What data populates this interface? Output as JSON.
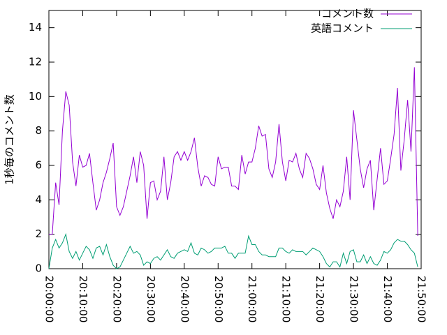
{
  "chart_data": {
    "type": "line",
    "ylabel": "1秒毎のコメント数",
    "legend": "top-right",
    "x": [
      "20:00:00",
      "20:01:00",
      "20:02:00",
      "20:03:00",
      "20:04:00",
      "20:05:00",
      "20:06:00",
      "20:07:00",
      "20:08:00",
      "20:09:00",
      "20:10:00",
      "20:11:00",
      "20:12:00",
      "20:13:00",
      "20:14:00",
      "20:15:00",
      "20:16:00",
      "20:17:00",
      "20:18:00",
      "20:19:00",
      "20:20:00",
      "20:21:00",
      "20:22:00",
      "20:23:00",
      "20:24:00",
      "20:25:00",
      "20:26:00",
      "20:27:00",
      "20:28:00",
      "20:29:00",
      "20:30:00",
      "20:31:00",
      "20:32:00",
      "20:33:00",
      "20:34:00",
      "20:35:00",
      "20:36:00",
      "20:37:00",
      "20:38:00",
      "20:39:00",
      "20:40:00",
      "20:41:00",
      "20:42:00",
      "20:43:00",
      "20:44:00",
      "20:45:00",
      "20:46:00",
      "20:47:00",
      "20:48:00",
      "20:49:00",
      "20:50:00",
      "20:51:00",
      "20:52:00",
      "20:53:00",
      "20:54:00",
      "20:55:00",
      "20:56:00",
      "20:57:00",
      "20:58:00",
      "20:59:00",
      "21:00:00",
      "21:01:00",
      "21:02:00",
      "21:03:00",
      "21:04:00",
      "21:05:00",
      "21:06:00",
      "21:07:00",
      "21:08:00",
      "21:09:00",
      "21:10:00",
      "21:11:00",
      "21:12:00",
      "21:13:00",
      "21:14:00",
      "21:15:00",
      "21:16:00",
      "21:17:00",
      "21:18:00",
      "21:19:00",
      "21:20:00",
      "21:21:00",
      "21:22:00",
      "21:23:00",
      "21:24:00",
      "21:25:00",
      "21:26:00",
      "21:27:00",
      "21:28:00",
      "21:29:00",
      "21:30:00",
      "21:31:00",
      "21:32:00",
      "21:33:00",
      "21:34:00",
      "21:35:00",
      "21:36:00",
      "21:37:00",
      "21:38:00",
      "21:39:00",
      "21:40:00",
      "21:41:00",
      "21:42:00",
      "21:43:00",
      "21:44:00",
      "21:45:00",
      "21:46:00",
      "21:47:00",
      "21:48:00",
      "21:49:00"
    ],
    "series": [
      {
        "name": "コメント数",
        "color": "#9400d3",
        "values": [
          2.0,
          2.0,
          5.0,
          3.7,
          8.0,
          10.3,
          9.5,
          6.2,
          4.8,
          6.6,
          5.9,
          6.0,
          6.7,
          5.0,
          3.4,
          4.0,
          5.0,
          5.6,
          6.4,
          7.3,
          3.6,
          3.1,
          3.6,
          4.5,
          5.4,
          6.5,
          5.0,
          6.8,
          6.0,
          2.9,
          5.0,
          5.1,
          4.0,
          4.5,
          6.5,
          4.0,
          5.0,
          6.5,
          6.8,
          6.3,
          6.8,
          6.3,
          6.8,
          7.6,
          5.9,
          4.8,
          5.4,
          5.3,
          4.9,
          4.8,
          6.5,
          5.8,
          5.9,
          5.9,
          4.8,
          4.8,
          4.6,
          6.6,
          5.5,
          6.2,
          6.2,
          7.0,
          8.3,
          7.7,
          7.8,
          5.8,
          5.3,
          6.2,
          8.4,
          6.2,
          5.1,
          6.3,
          6.2,
          6.7,
          5.8,
          5.3,
          6.7,
          6.4,
          5.8,
          4.9,
          4.6,
          6.0,
          4.4,
          3.5,
          2.9,
          4.0,
          3.6,
          4.5,
          6.5,
          4.0,
          9.2,
          7.5,
          5.8,
          4.7,
          5.8,
          6.3,
          3.4,
          5.2,
          7.0,
          4.9,
          5.1,
          6.4,
          7.8,
          10.5,
          5.7,
          7.5,
          9.8,
          6.8,
          11.7,
          1.9
        ]
      },
      {
        "name": "英語コメント",
        "color": "#009e73",
        "values": [
          0.0,
          1.2,
          1.7,
          1.2,
          1.5,
          2.0,
          1.0,
          0.6,
          1.0,
          0.5,
          0.9,
          1.3,
          1.1,
          0.6,
          1.2,
          1.3,
          0.8,
          1.4,
          0.7,
          0.2,
          0.0,
          0.1,
          0.5,
          0.9,
          1.3,
          0.9,
          1.0,
          0.8,
          0.2,
          0.4,
          0.3,
          0.6,
          0.7,
          0.5,
          0.8,
          1.1,
          0.7,
          0.6,
          0.9,
          1.0,
          1.1,
          1.0,
          1.5,
          0.9,
          0.8,
          1.2,
          1.1,
          0.9,
          1.0,
          1.2,
          1.2,
          1.2,
          1.3,
          0.9,
          0.9,
          0.6,
          0.9,
          0.9,
          0.9,
          1.9,
          1.4,
          1.4,
          1.0,
          0.8,
          0.8,
          0.7,
          0.7,
          0.7,
          1.2,
          1.2,
          1.0,
          0.9,
          1.1,
          1.0,
          1.0,
          1.0,
          0.8,
          1.0,
          1.2,
          1.1,
          1.0,
          0.7,
          0.3,
          0.1,
          0.4,
          0.4,
          0.1,
          0.9,
          0.3,
          1.0,
          1.1,
          0.4,
          0.4,
          0.8,
          0.3,
          0.7,
          0.3,
          0.2,
          0.5,
          1.0,
          0.9,
          1.1,
          1.5,
          1.7,
          1.6,
          1.6,
          1.4,
          1.1,
          0.9,
          0.1
        ]
      }
    ],
    "xlim": [
      "20:00:00",
      "21:50:00"
    ],
    "xticks": [
      "20:00:00",
      "20:10:00",
      "20:20:00",
      "20:30:00",
      "20:40:00",
      "20:50:00",
      "21:00:00",
      "21:10:00",
      "21:20:00",
      "21:30:00",
      "21:40:00",
      "21:50:00"
    ],
    "ylim": [
      0,
      15
    ],
    "yticks": [
      0,
      2,
      4,
      6,
      8,
      10,
      12,
      14
    ]
  }
}
